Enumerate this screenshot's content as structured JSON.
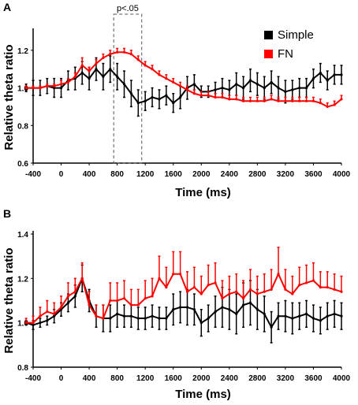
{
  "panel_labels": [
    "A",
    "B"
  ],
  "colors": {
    "simple": "#000000",
    "fn": "#ff0000",
    "axis": "#000000"
  },
  "chart_data": [
    {
      "type": "line",
      "panel": "A",
      "xlabel": "Time (ms)",
      "ylabel": "Relative theta ratio",
      "xlim": [
        -400,
        4000
      ],
      "ylim": [
        0.6,
        1.3
      ],
      "x_ticks": [
        -400,
        0,
        400,
        800,
        1200,
        1600,
        2000,
        2400,
        2800,
        3200,
        3600,
        4000
      ],
      "y_ticks": [
        0.6,
        0.8,
        1.0,
        1.2
      ],
      "y_tick_labels": [
        "0.6",
        "0.8",
        "1.0",
        "1.2"
      ],
      "legend": {
        "position": "top-right",
        "entries": [
          "Simple",
          "FN"
        ]
      },
      "significance_box": {
        "label": "p<.05",
        "x_range": [
          750,
          1150
        ]
      },
      "x": [
        -500,
        -400,
        -300,
        -200,
        -100,
        0,
        100,
        200,
        300,
        400,
        500,
        600,
        700,
        800,
        900,
        1000,
        1100,
        1200,
        1300,
        1400,
        1500,
        1600,
        1700,
        1800,
        1900,
        2000,
        2100,
        2200,
        2300,
        2400,
        2500,
        2600,
        2700,
        2800,
        2900,
        3000,
        3100,
        3200,
        3300,
        3400,
        3500,
        3600,
        3700,
        3800,
        3900,
        4000
      ],
      "series": [
        {
          "name": "Simple",
          "color": "#000000",
          "values": [
            1.0,
            1.0,
            1.0,
            1.01,
            1.0,
            1.0,
            1.04,
            1.05,
            1.08,
            1.05,
            1.1,
            1.06,
            1.1,
            1.06,
            1.02,
            0.97,
            0.92,
            0.93,
            0.95,
            0.94,
            0.96,
            0.92,
            0.95,
            1.0,
            1.02,
            0.98,
            0.98,
            0.99,
            1.0,
            0.99,
            1.02,
            1.0,
            1.04,
            1.02,
            1.0,
            1.03,
            1.0,
            0.98,
            0.99,
            1.0,
            1.0,
            1.05,
            1.08,
            1.04,
            1.07,
            1.07
          ],
          "errors": [
            0.02,
            0.04,
            0.04,
            0.04,
            0.05,
            0.05,
            0.05,
            0.06,
            0.06,
            0.06,
            0.06,
            0.07,
            0.07,
            0.07,
            0.07,
            0.07,
            0.07,
            0.05,
            0.05,
            0.05,
            0.05,
            0.05,
            0.06,
            0.06,
            0.05,
            0.03,
            0.03,
            0.04,
            0.05,
            0.05,
            0.06,
            0.06,
            0.06,
            0.06,
            0.06,
            0.06,
            0.06,
            0.06,
            0.05,
            0.05,
            0.05,
            0.05,
            0.05,
            0.05,
            0.05,
            0.05
          ]
        },
        {
          "name": "FN",
          "color": "#ff0000",
          "values": [
            1.0,
            1.0,
            1.0,
            1.01,
            1.01,
            1.02,
            1.03,
            1.06,
            1.12,
            1.09,
            1.13,
            1.16,
            1.18,
            1.19,
            1.19,
            1.18,
            1.15,
            1.12,
            1.1,
            1.07,
            1.05,
            1.03,
            1.01,
            0.99,
            0.97,
            0.96,
            0.96,
            0.95,
            0.95,
            0.94,
            0.94,
            0.93,
            0.93,
            0.93,
            0.93,
            0.94,
            0.93,
            0.93,
            0.93,
            0.93,
            0.93,
            0.93,
            0.92,
            0.9,
            0.91,
            0.94
          ],
          "errors": [
            0.01,
            0.01,
            0.01,
            0.01,
            0.01,
            0.02,
            0.02,
            0.02,
            0.04,
            0.02,
            0.02,
            0.02,
            0.02,
            0.02,
            0.02,
            0.02,
            0.02,
            0.02,
            0.02,
            0.02,
            0.02,
            0.02,
            0.02,
            0.02,
            0.02,
            0.02,
            0.02,
            0.02,
            0.02,
            0.02,
            0.02,
            0.02,
            0.02,
            0.02,
            0.02,
            0.02,
            0.02,
            0.02,
            0.02,
            0.02,
            0.02,
            0.02,
            0.02,
            0.02,
            0.02,
            0.02
          ]
        }
      ]
    },
    {
      "type": "line",
      "panel": "B",
      "xlabel": "Time (ms)",
      "ylabel": "Relative theta ratio",
      "xlim": [
        -400,
        4000
      ],
      "ylim": [
        0.8,
        1.4
      ],
      "x_ticks": [
        -400,
        0,
        400,
        800,
        1200,
        1600,
        2000,
        2400,
        2800,
        3200,
        3600,
        4000
      ],
      "y_ticks": [
        0.8,
        1.0,
        1.2,
        1.4
      ],
      "y_tick_labels": [
        "0.8",
        "1.0",
        "1.2",
        "1.4"
      ],
      "x": [
        -500,
        -400,
        -300,
        -200,
        -100,
        0,
        100,
        200,
        300,
        400,
        500,
        600,
        700,
        800,
        900,
        1000,
        1100,
        1200,
        1300,
        1400,
        1500,
        1600,
        1700,
        1800,
        1900,
        2000,
        2100,
        2200,
        2300,
        2400,
        2500,
        2600,
        2700,
        2800,
        2900,
        3000,
        3100,
        3200,
        3300,
        3400,
        3500,
        3600,
        3700,
        3800,
        3900,
        4000
      ],
      "series": [
        {
          "name": "Simple",
          "color": "#000000",
          "values": [
            1.0,
            0.99,
            1.0,
            1.01,
            1.03,
            1.06,
            1.09,
            1.12,
            1.2,
            1.1,
            1.03,
            1.02,
            1.02,
            1.04,
            1.03,
            1.03,
            1.02,
            1.02,
            1.03,
            1.02,
            1.02,
            1.06,
            1.07,
            1.07,
            1.06,
            1.0,
            1.02,
            1.05,
            1.07,
            1.06,
            1.04,
            1.08,
            1.09,
            1.06,
            1.04,
            0.98,
            1.03,
            1.03,
            1.02,
            1.03,
            1.04,
            1.02,
            1.01,
            1.03,
            1.04,
            1.03
          ],
          "errors": [
            0.01,
            0.02,
            0.02,
            0.02,
            0.03,
            0.03,
            0.04,
            0.05,
            0.06,
            0.05,
            0.05,
            0.06,
            0.06,
            0.06,
            0.05,
            0.05,
            0.05,
            0.05,
            0.05,
            0.05,
            0.05,
            0.07,
            0.07,
            0.08,
            0.07,
            0.06,
            0.06,
            0.07,
            0.09,
            0.09,
            0.09,
            0.1,
            0.1,
            0.09,
            0.08,
            0.07,
            0.06,
            0.07,
            0.07,
            0.06,
            0.06,
            0.06,
            0.06,
            0.06,
            0.06,
            0.06
          ]
        },
        {
          "name": "FN",
          "color": "#ff0000",
          "values": [
            1.0,
            1.0,
            1.03,
            1.05,
            1.04,
            1.07,
            1.12,
            1.14,
            1.2,
            1.08,
            1.03,
            1.02,
            1.1,
            1.1,
            1.11,
            1.08,
            1.08,
            1.11,
            1.12,
            1.2,
            1.16,
            1.22,
            1.22,
            1.14,
            1.16,
            1.13,
            1.17,
            1.18,
            1.11,
            1.13,
            1.14,
            1.11,
            1.15,
            1.13,
            1.14,
            1.15,
            1.22,
            1.15,
            1.13,
            1.17,
            1.18,
            1.19,
            1.16,
            1.16,
            1.15,
            1.14
          ],
          "errors": [
            0.02,
            0.03,
            0.04,
            0.05,
            0.05,
            0.05,
            0.06,
            0.06,
            0.07,
            0.06,
            0.05,
            0.06,
            0.08,
            0.08,
            0.08,
            0.07,
            0.07,
            0.08,
            0.08,
            0.1,
            0.09,
            0.1,
            0.1,
            0.09,
            0.09,
            0.08,
            0.09,
            0.09,
            0.08,
            0.08,
            0.08,
            0.08,
            0.09,
            0.08,
            0.08,
            0.09,
            0.12,
            0.09,
            0.08,
            0.08,
            0.08,
            0.08,
            0.07,
            0.07,
            0.07,
            0.07
          ]
        }
      ]
    }
  ]
}
